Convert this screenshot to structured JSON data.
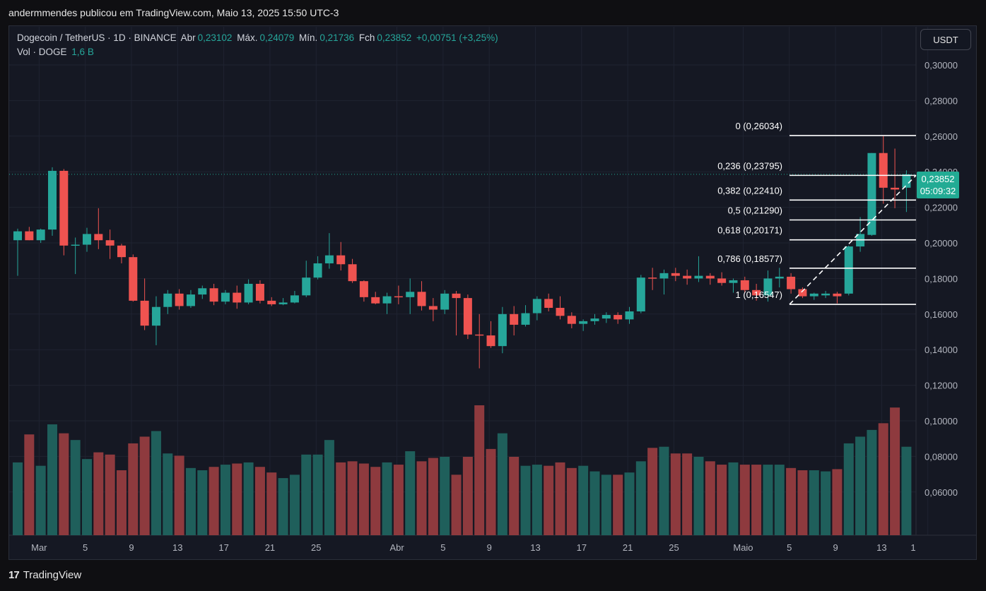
{
  "header": {
    "caption": "andermmendes publicou em TradingView.com, Maio 13, 2025 15:50 UTC-3"
  },
  "legend": {
    "symbol": "Dogecoin / TetherUS · 1D · BINANCE",
    "open_label": "Abr",
    "open": "0,23102",
    "high_label": "Máx.",
    "high": "0,24079",
    "low_label": "Mín.",
    "low": "0,21736",
    "close_label": "Fch",
    "close": "0,23852",
    "change": "+0,00751 (+3,25%)",
    "vol_label": "Vol · DOGE",
    "vol": "1,6 B"
  },
  "currency_button": "USDT",
  "last_price": {
    "price": "0,23852",
    "countdown": "05:09:32"
  },
  "brand": {
    "logo": "17",
    "name": "TradingView"
  },
  "colors": {
    "up": "#26a69a",
    "down": "#ef5350",
    "vol_up": "#1f5f5b",
    "vol_down": "#8e3a3e",
    "fib_line": "#ffffff",
    "background": "#151823"
  },
  "chart_data": {
    "type": "candlestick",
    "symbol": "DOGE/USDT",
    "interval": "1D",
    "x_ticks": [
      "Mar",
      "5",
      "9",
      "13",
      "17",
      "21",
      "25",
      "Abr",
      "5",
      "9",
      "13",
      "17",
      "21",
      "25",
      "Maio",
      "5",
      "9",
      "13",
      "1"
    ],
    "y_ticks": [
      "0,06000",
      "0,08000",
      "0,10000",
      "0,12000",
      "0,14000",
      "0,16000",
      "0,18000",
      "0,20000",
      "0,22000",
      "0,24000",
      "0,26000",
      "0,28000",
      "0,30000"
    ],
    "ylim": [
      0.05,
      0.3
    ],
    "candles": [
      {
        "d": "02-28",
        "o": 0.2015,
        "h": 0.208,
        "l": 0.1815,
        "c": 0.2065,
        "v": 0.065
      },
      {
        "d": "03-01",
        "o": 0.2065,
        "h": 0.209,
        "l": 0.2015,
        "c": 0.2015,
        "v": 0.09
      },
      {
        "d": "03-02",
        "o": 0.2015,
        "h": 0.208,
        "l": 0.2,
        "c": 0.2075,
        "v": 0.062
      },
      {
        "d": "03-03",
        "o": 0.2075,
        "h": 0.2425,
        "l": 0.204,
        "c": 0.2405,
        "v": 0.099
      },
      {
        "d": "03-04",
        "o": 0.2405,
        "h": 0.2415,
        "l": 0.193,
        "c": 0.1985,
        "v": 0.091
      },
      {
        "d": "03-05",
        "o": 0.1985,
        "h": 0.203,
        "l": 0.1825,
        "c": 0.199,
        "v": 0.085
      },
      {
        "d": "03-06",
        "o": 0.199,
        "h": 0.2085,
        "l": 0.195,
        "c": 0.205,
        "v": 0.068
      },
      {
        "d": "03-07",
        "o": 0.205,
        "h": 0.2195,
        "l": 0.1965,
        "c": 0.2015,
        "v": 0.074
      },
      {
        "d": "03-08",
        "o": 0.2015,
        "h": 0.2075,
        "l": 0.191,
        "c": 0.1985,
        "v": 0.072
      },
      {
        "d": "03-09",
        "o": 0.1985,
        "h": 0.1995,
        "l": 0.1885,
        "c": 0.192,
        "v": 0.058
      },
      {
        "d": "03-10",
        "o": 0.192,
        "h": 0.1935,
        "l": 0.167,
        "c": 0.1675,
        "v": 0.082
      },
      {
        "d": "03-11",
        "o": 0.1675,
        "h": 0.18,
        "l": 0.151,
        "c": 0.1535,
        "v": 0.088
      },
      {
        "d": "03-12",
        "o": 0.1535,
        "h": 0.17,
        "l": 0.1425,
        "c": 0.164,
        "v": 0.093
      },
      {
        "d": "03-13",
        "o": 0.164,
        "h": 0.1735,
        "l": 0.16,
        "c": 0.1715,
        "v": 0.073
      },
      {
        "d": "03-14",
        "o": 0.1715,
        "h": 0.174,
        "l": 0.1625,
        "c": 0.1645,
        "v": 0.071
      },
      {
        "d": "03-15",
        "o": 0.1645,
        "h": 0.1735,
        "l": 0.1635,
        "c": 0.171,
        "v": 0.06
      },
      {
        "d": "03-16",
        "o": 0.171,
        "h": 0.176,
        "l": 0.1685,
        "c": 0.1745,
        "v": 0.058
      },
      {
        "d": "03-17",
        "o": 0.1745,
        "h": 0.177,
        "l": 0.165,
        "c": 0.167,
        "v": 0.061
      },
      {
        "d": "03-18",
        "o": 0.167,
        "h": 0.1735,
        "l": 0.1655,
        "c": 0.172,
        "v": 0.063
      },
      {
        "d": "03-19",
        "o": 0.172,
        "h": 0.176,
        "l": 0.163,
        "c": 0.1665,
        "v": 0.064
      },
      {
        "d": "03-20",
        "o": 0.1665,
        "h": 0.1795,
        "l": 0.1655,
        "c": 0.177,
        "v": 0.065
      },
      {
        "d": "03-21",
        "o": 0.177,
        "h": 0.179,
        "l": 0.166,
        "c": 0.1675,
        "v": 0.061
      },
      {
        "d": "03-22",
        "o": 0.1675,
        "h": 0.1695,
        "l": 0.1645,
        "c": 0.1655,
        "v": 0.056
      },
      {
        "d": "03-23",
        "o": 0.1655,
        "h": 0.169,
        "l": 0.165,
        "c": 0.1665,
        "v": 0.051
      },
      {
        "d": "03-24",
        "o": 0.1665,
        "h": 0.173,
        "l": 0.166,
        "c": 0.1705,
        "v": 0.054
      },
      {
        "d": "03-25",
        "o": 0.1705,
        "h": 0.19,
        "l": 0.1695,
        "c": 0.1805,
        "v": 0.072
      },
      {
        "d": "03-26",
        "o": 0.1805,
        "h": 0.1925,
        "l": 0.1795,
        "c": 0.1885,
        "v": 0.072
      },
      {
        "d": "03-27",
        "o": 0.1885,
        "h": 0.2055,
        "l": 0.1855,
        "c": 0.193,
        "v": 0.085
      },
      {
        "d": "03-28",
        "o": 0.193,
        "h": 0.2005,
        "l": 0.1845,
        "c": 0.188,
        "v": 0.065
      },
      {
        "d": "03-29",
        "o": 0.188,
        "h": 0.191,
        "l": 0.1775,
        "c": 0.1785,
        "v": 0.066
      },
      {
        "d": "03-30",
        "o": 0.1785,
        "h": 0.179,
        "l": 0.167,
        "c": 0.1695,
        "v": 0.064
      },
      {
        "d": "03-31",
        "o": 0.1695,
        "h": 0.1725,
        "l": 0.1655,
        "c": 0.166,
        "v": 0.061
      },
      {
        "d": "04-01",
        "o": 0.166,
        "h": 0.172,
        "l": 0.16,
        "c": 0.17,
        "v": 0.065
      },
      {
        "d": "04-02",
        "o": 0.17,
        "h": 0.176,
        "l": 0.1655,
        "c": 0.1695,
        "v": 0.063
      },
      {
        "d": "04-03",
        "o": 0.1695,
        "h": 0.18,
        "l": 0.16,
        "c": 0.1725,
        "v": 0.075
      },
      {
        "d": "04-04",
        "o": 0.1725,
        "h": 0.1785,
        "l": 0.162,
        "c": 0.1645,
        "v": 0.066
      },
      {
        "d": "04-05",
        "o": 0.1645,
        "h": 0.169,
        "l": 0.156,
        "c": 0.1625,
        "v": 0.069
      },
      {
        "d": "04-06",
        "o": 0.1625,
        "h": 0.1735,
        "l": 0.16,
        "c": 0.1715,
        "v": 0.07
      },
      {
        "d": "04-07",
        "o": 0.1715,
        "h": 0.173,
        "l": 0.148,
        "c": 0.169,
        "v": 0.054
      },
      {
        "d": "04-08",
        "o": 0.169,
        "h": 0.171,
        "l": 0.146,
        "c": 0.1485,
        "v": 0.07
      },
      {
        "d": "04-09",
        "o": 0.1485,
        "h": 0.16,
        "l": 0.1295,
        "c": 0.148,
        "v": 0.116
      },
      {
        "d": "04-10",
        "o": 0.148,
        "h": 0.156,
        "l": 0.141,
        "c": 0.142,
        "v": 0.077
      },
      {
        "d": "04-11",
        "o": 0.142,
        "h": 0.164,
        "l": 0.138,
        "c": 0.16,
        "v": 0.091
      },
      {
        "d": "04-12",
        "o": 0.16,
        "h": 0.1645,
        "l": 0.148,
        "c": 0.154,
        "v": 0.07
      },
      {
        "d": "04-13",
        "o": 0.154,
        "h": 0.165,
        "l": 0.153,
        "c": 0.1605,
        "v": 0.062
      },
      {
        "d": "04-14",
        "o": 0.1605,
        "h": 0.17,
        "l": 0.1565,
        "c": 0.1685,
        "v": 0.063
      },
      {
        "d": "04-15",
        "o": 0.1685,
        "h": 0.1715,
        "l": 0.1615,
        "c": 0.1635,
        "v": 0.062
      },
      {
        "d": "04-16",
        "o": 0.1635,
        "h": 0.17,
        "l": 0.157,
        "c": 0.159,
        "v": 0.065
      },
      {
        "d": "04-17",
        "o": 0.159,
        "h": 0.161,
        "l": 0.152,
        "c": 0.1545,
        "v": 0.06
      },
      {
        "d": "04-18",
        "o": 0.1545,
        "h": 0.157,
        "l": 0.1505,
        "c": 0.156,
        "v": 0.062
      },
      {
        "d": "04-19",
        "o": 0.156,
        "h": 0.16,
        "l": 0.154,
        "c": 0.1575,
        "v": 0.057
      },
      {
        "d": "04-20",
        "o": 0.1575,
        "h": 0.161,
        "l": 0.155,
        "c": 0.1595,
        "v": 0.054
      },
      {
        "d": "04-21",
        "o": 0.1595,
        "h": 0.161,
        "l": 0.1545,
        "c": 0.157,
        "v": 0.054
      },
      {
        "d": "04-22",
        "o": 0.157,
        "h": 0.164,
        "l": 0.1545,
        "c": 0.1615,
        "v": 0.056
      },
      {
        "d": "04-23",
        "o": 0.1615,
        "h": 0.182,
        "l": 0.1605,
        "c": 0.1805,
        "v": 0.066
      },
      {
        "d": "04-24",
        "o": 0.1805,
        "h": 0.186,
        "l": 0.1735,
        "c": 0.18,
        "v": 0.078
      },
      {
        "d": "04-25",
        "o": 0.18,
        "h": 0.185,
        "l": 0.171,
        "c": 0.183,
        "v": 0.079
      },
      {
        "d": "04-26",
        "o": 0.183,
        "h": 0.186,
        "l": 0.1785,
        "c": 0.1815,
        "v": 0.073
      },
      {
        "d": "04-27",
        "o": 0.1815,
        "h": 0.185,
        "l": 0.1765,
        "c": 0.18,
        "v": 0.073
      },
      {
        "d": "04-28",
        "o": 0.18,
        "h": 0.1925,
        "l": 0.178,
        "c": 0.1815,
        "v": 0.07
      },
      {
        "d": "04-29",
        "o": 0.1815,
        "h": 0.183,
        "l": 0.1765,
        "c": 0.18,
        "v": 0.066
      },
      {
        "d": "04-30",
        "o": 0.18,
        "h": 0.1835,
        "l": 0.176,
        "c": 0.1775,
        "v": 0.063
      },
      {
        "d": "05-01",
        "o": 0.1775,
        "h": 0.18,
        "l": 0.172,
        "c": 0.179,
        "v": 0.065
      },
      {
        "d": "05-02",
        "o": 0.179,
        "h": 0.181,
        "l": 0.172,
        "c": 0.1735,
        "v": 0.063
      },
      {
        "d": "05-03",
        "o": 0.1735,
        "h": 0.177,
        "l": 0.1675,
        "c": 0.1705,
        "v": 0.063
      },
      {
        "d": "05-04",
        "o": 0.1705,
        "h": 0.1845,
        "l": 0.167,
        "c": 0.18,
        "v": 0.063
      },
      {
        "d": "05-05",
        "o": 0.18,
        "h": 0.186,
        "l": 0.175,
        "c": 0.181,
        "v": 0.063
      },
      {
        "d": "05-06",
        "o": 0.181,
        "h": 0.183,
        "l": 0.1715,
        "c": 0.174,
        "v": 0.06
      },
      {
        "d": "05-07",
        "o": 0.174,
        "h": 0.175,
        "l": 0.169,
        "c": 0.17,
        "v": 0.058
      },
      {
        "d": "05-08",
        "o": 0.17,
        "h": 0.172,
        "l": 0.168,
        "c": 0.1715,
        "v": 0.058
      },
      {
        "d": "05-09",
        "o": 0.1705,
        "h": 0.173,
        "l": 0.169,
        "c": 0.1715,
        "v": 0.057
      },
      {
        "d": "05-10",
        "o": 0.1715,
        "h": 0.1725,
        "l": 0.166,
        "c": 0.17,
        "v": 0.059
      },
      {
        "d": "05-11",
        "o": 0.1715,
        "h": 0.1985,
        "l": 0.1705,
        "c": 0.198,
        "v": 0.082
      },
      {
        "d": "05-12",
        "o": 0.198,
        "h": 0.2145,
        "l": 0.195,
        "c": 0.205,
        "v": 0.088
      },
      {
        "d": "05-13",
        "o": 0.2045,
        "h": 0.2505,
        "l": 0.204,
        "c": 0.2505,
        "v": 0.094
      },
      {
        "d": "05-14",
        "o": 0.2505,
        "h": 0.26,
        "l": 0.222,
        "c": 0.231,
        "v": 0.1
      },
      {
        "d": "05-15",
        "o": 0.231,
        "h": 0.253,
        "l": 0.2195,
        "c": 0.23,
        "v": 0.114
      },
      {
        "d": "05-16",
        "o": 0.23102,
        "h": 0.24079,
        "l": 0.21736,
        "c": 0.23852,
        "v": 0.079
      }
    ],
    "fibonacci": [
      {
        "label": "0 (0,26034)",
        "value": 0.26034
      },
      {
        "label": "0,236 (0,23795)",
        "value": 0.23795
      },
      {
        "label": "0,382 (0,22410)",
        "value": 0.2241
      },
      {
        "label": "0,5 (0,21290)",
        "value": 0.2129
      },
      {
        "label": "0,618 (0,20171)",
        "value": 0.20171
      },
      {
        "label": "0,786 (0,18577)",
        "value": 0.18577
      },
      {
        "label": "1 (0,16547)",
        "value": 0.16547
      }
    ]
  }
}
